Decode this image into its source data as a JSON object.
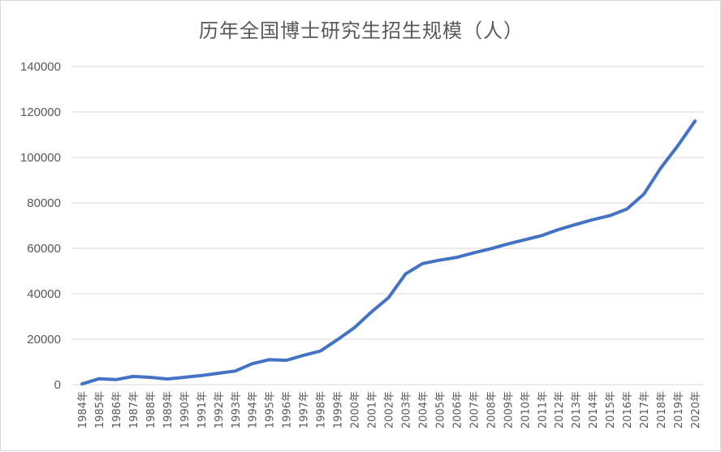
{
  "chart_data": {
    "type": "line",
    "title": "历年全国博士研究生招生规模（人）",
    "xlabel": "",
    "ylabel": "",
    "ylim": [
      0,
      140000
    ],
    "yticks": [
      "0",
      "20000",
      "40000",
      "60000",
      "80000",
      "100000",
      "120000",
      "140000"
    ],
    "categories": [
      "1984年",
      "1985年",
      "1986年",
      "1987年",
      "1988年",
      "1989年",
      "1990年",
      "1991年",
      "1992年",
      "1993年",
      "1994年",
      "1995年",
      "1996年",
      "1997年",
      "1998年",
      "1999年",
      "2000年",
      "2001年",
      "2002年",
      "2003年",
      "2004年",
      "2005年",
      "2006年",
      "2007年",
      "2008年",
      "2009年",
      "2010年",
      "2011年",
      "2012年",
      "2013年",
      "2014年",
      "2015年",
      "2016年",
      "2017年",
      "2018年",
      "2019年",
      "2020年"
    ],
    "series": [
      {
        "color": "#4472c4",
        "values": [
          300,
          2600,
          2200,
          3600,
          3200,
          2500,
          3200,
          4000,
          5000,
          6000,
          9200,
          11000,
          10700,
          12900,
          14800,
          19800,
          25100,
          32000,
          38300,
          48700,
          53300,
          54800,
          56000,
          58000,
          59800,
          61900,
          63800,
          65600,
          68300,
          70500,
          72600,
          74400,
          77300,
          83900,
          95500,
          105200,
          116000
        ]
      }
    ],
    "grid": true,
    "legend": "none"
  }
}
